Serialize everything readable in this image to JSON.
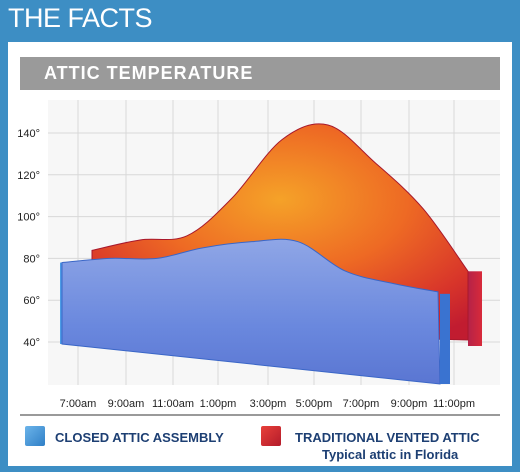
{
  "banner": {
    "title": "THE FACTS"
  },
  "chart_title": "ATTIC TEMPERATURE",
  "legend": {
    "closed_label": "CLOSED ATTIC ASSEMBLY",
    "vented_label": "TRADITIONAL VENTED ATTIC",
    "vented_sublabel": "Typical attic in Florida"
  },
  "colors": {
    "banner": "#3d8ec4",
    "closed_series": "#4a7fd6",
    "vented_series_outer": "#c61d2c",
    "vented_series_inner": "#f07a22",
    "legend_text": "#1d3f73"
  },
  "chart_data": {
    "type": "area",
    "title": "ATTIC TEMPERATURE",
    "xlabel": "",
    "ylabel": "",
    "yticks": [
      "40°",
      "60°",
      "80°",
      "100°",
      "120°",
      "140°"
    ],
    "ylim": [
      30,
      150
    ],
    "x_tick_labels": [
      "7:00am",
      "9:00am",
      "11:00am",
      "1:00pm",
      "3:00pm",
      "5:00pm",
      "7:00pm",
      "9:00pm",
      "11:00pm"
    ],
    "grid": true,
    "legend_position": "bottom",
    "series": [
      {
        "name": "TRADITIONAL VENTED ATTIC",
        "values": [
          80,
          85,
          87,
          105,
          133,
          140,
          122,
          100,
          70
        ]
      },
      {
        "name": "CLOSED ATTIC ASSEMBLY",
        "values": [
          78,
          80,
          80,
          85,
          88,
          88,
          74,
          68,
          64
        ]
      }
    ]
  }
}
